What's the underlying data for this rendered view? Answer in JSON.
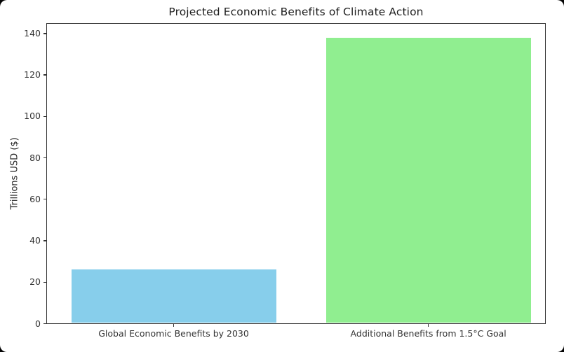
{
  "window": {
    "background": "#050505",
    "card_background": "#ffffff"
  },
  "chart_data": {
    "type": "bar",
    "title": "Projected Economic Benefits of Climate Action",
    "categories": [
      "Global Economic Benefits by 2030",
      "Additional Benefits from 1.5°C Goal"
    ],
    "values": [
      26,
      138
    ],
    "bar_colors": [
      "#87CEEB",
      "#90EE90"
    ],
    "xlabel": "",
    "ylabel": "Trillions USD ($)",
    "ylim": [
      0,
      145
    ],
    "yticks": [
      0,
      20,
      40,
      60,
      80,
      100,
      120,
      140
    ],
    "grid": false,
    "legend_position": "none",
    "text_color": "#333333",
    "spine_color": "#333333"
  }
}
